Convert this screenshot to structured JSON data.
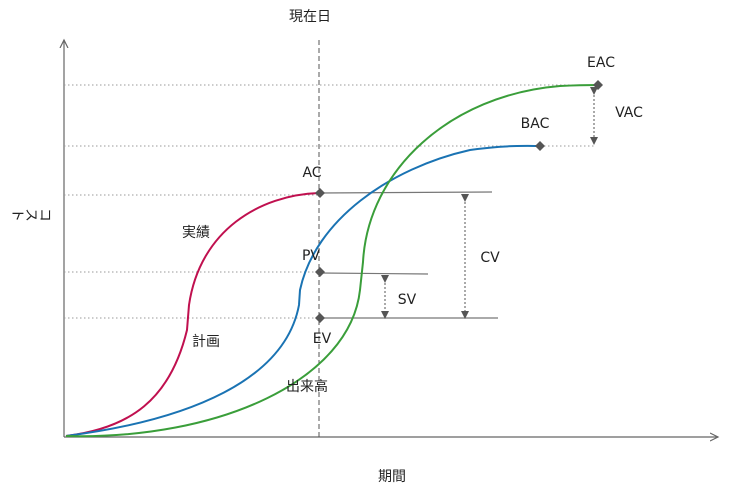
{
  "title": "現在日",
  "axes": {
    "x_label": "期間",
    "y_label": "コスト"
  },
  "points": {
    "ac": "AC",
    "pv": "PV",
    "ev": "EV",
    "bac": "BAC",
    "eac": "EAC"
  },
  "variances": {
    "cv": "CV",
    "sv": "SV",
    "vac": "VAC"
  },
  "curves": {
    "actual": {
      "label": "実績",
      "color": "#c0104f"
    },
    "plan": {
      "label": "計画",
      "color": "#1a73b3"
    },
    "earned": {
      "label": "出来高",
      "color": "#3a9e3a"
    }
  },
  "colors": {
    "axis": "#666666",
    "guide": "#999999",
    "marker": "#555555"
  }
}
